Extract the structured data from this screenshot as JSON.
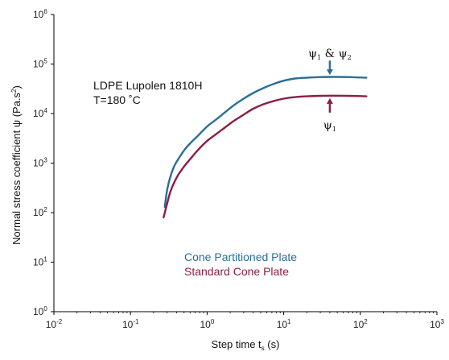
{
  "chart_data": {
    "type": "line",
    "xlabel": {
      "main": "Step time t",
      "sub": "s",
      "unit": " (s)"
    },
    "ylabel": {
      "main": "Normal stress coefficient ψ (Pa.s",
      "sup": "2",
      "end": ")"
    },
    "xscale": "log",
    "yscale": "log",
    "xlim": [
      0.01,
      1000
    ],
    "ylim": [
      1,
      1000000
    ],
    "grid": false,
    "xticks": [
      {
        "base": "10",
        "exp": "-2"
      },
      {
        "base": "10",
        "exp": "-1"
      },
      {
        "base": "10",
        "exp": "0"
      },
      {
        "base": "10",
        "exp": "1"
      },
      {
        "base": "10",
        "exp": "2"
      },
      {
        "base": "10",
        "exp": "3"
      }
    ],
    "yticks": [
      {
        "base": "10",
        "exp": "0"
      },
      {
        "base": "10",
        "exp": "1"
      },
      {
        "base": "10",
        "exp": "2"
      },
      {
        "base": "10",
        "exp": "3"
      },
      {
        "base": "10",
        "exp": "4"
      },
      {
        "base": "10",
        "exp": "5"
      },
      {
        "base": "10",
        "exp": "6"
      }
    ],
    "annotation_lines": [
      "LDPE Lupolen 1810H",
      "T=180 ˚C"
    ],
    "series": [
      {
        "name": "Cone Partitioned Plate",
        "color": "#2a6f97",
        "x": [
          0.28,
          0.3,
          0.33,
          0.37,
          0.42,
          0.5,
          0.6,
          0.75,
          1,
          1.3,
          1.7,
          2.2,
          3,
          4,
          5.5,
          7.5,
          10,
          14,
          20,
          30,
          45,
          70,
          100,
          120
        ],
        "y": [
          130,
          280,
          520,
          850,
          1200,
          1800,
          2500,
          3500,
          5500,
          7500,
          10500,
          14500,
          20000,
          26000,
          33000,
          40000,
          46000,
          51000,
          53000,
          54500,
          55000,
          54500,
          53500,
          53000
        ]
      },
      {
        "name": "Standard Cone Plate",
        "color": "#8b1e46",
        "x": [
          0.27,
          0.3,
          0.33,
          0.37,
          0.42,
          0.5,
          0.6,
          0.75,
          1,
          1.3,
          1.7,
          2.2,
          3,
          4,
          5.5,
          7.5,
          10,
          14,
          20,
          30,
          45,
          70,
          100,
          120
        ],
        "y": [
          80,
          150,
          260,
          400,
          580,
          850,
          1200,
          1800,
          2800,
          3800,
          5200,
          7000,
          9500,
          12500,
          15500,
          18000,
          20000,
          21500,
          22300,
          22800,
          23000,
          22800,
          22500,
          22300
        ]
      }
    ],
    "arrow_markers": [
      {
        "x": 40,
        "y": 60000,
        "direction": "down",
        "color": "#2a6f97",
        "label": {
          "a": "ψ",
          "a_sub": "1",
          "mid": " & ",
          "b": "ψ",
          "b_sub": "2"
        }
      },
      {
        "x": 40,
        "y": 20500,
        "direction": "up",
        "color": "#8b1e46",
        "label": {
          "a": "ψ",
          "a_sub": "1"
        }
      }
    ]
  }
}
